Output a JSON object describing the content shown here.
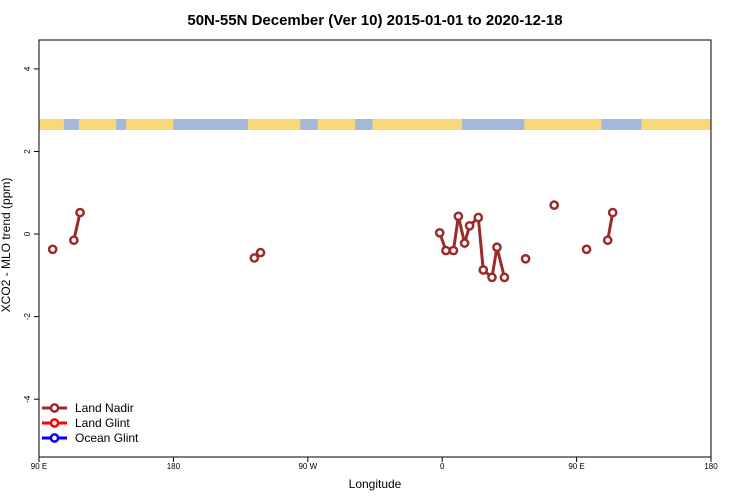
{
  "chart_data": {
    "type": "line",
    "title": "50N-55N December (Ver 10)   2015-01-01 to 2020-12-18",
    "xlabel": "Longitude",
    "ylabel": "XCO2 - MLO trend (ppm)",
    "xlim": [
      -90,
      180
    ],
    "ylim": [
      -5.4,
      4.7
    ],
    "x_ticks": [
      {
        "value": -90,
        "label": "90 E"
      },
      {
        "value": -36,
        "label": "180"
      },
      {
        "value": 18,
        "label": "90 W"
      },
      {
        "value": 72,
        "label": "0"
      },
      {
        "value": 126,
        "label": "90 E"
      },
      {
        "value": 180,
        "label": "180"
      }
    ],
    "y_ticks": [
      -4,
      -2,
      0,
      2,
      4
    ],
    "land_ocean_strip": {
      "land_color": "#F9D877",
      "ocean_color": "#A4B8DC",
      "land_ranges": [
        [
          -90,
          -80
        ],
        [
          -74,
          -59
        ],
        [
          -55,
          -36
        ],
        [
          -6,
          15
        ],
        [
          22,
          37
        ],
        [
          44,
          80
        ],
        [
          105,
          136
        ],
        [
          152,
          180
        ]
      ]
    },
    "series": [
      {
        "name": "Land Nadir",
        "color": "#9B2B2B",
        "segments": [
          [
            {
              "x": -84.5,
              "y": -0.37
            }
          ],
          [
            {
              "x": -76.0,
              "y": -0.15
            },
            {
              "x": -73.5,
              "y": 0.52
            }
          ],
          [
            {
              "x": -3.5,
              "y": -0.58
            },
            {
              "x": -1.0,
              "y": -0.45
            }
          ],
          [
            {
              "x": 71.0,
              "y": 0.03
            },
            {
              "x": 73.5,
              "y": -0.4
            },
            {
              "x": 76.5,
              "y": -0.4
            },
            {
              "x": 78.5,
              "y": 0.43
            },
            {
              "x": 81.0,
              "y": -0.22
            },
            {
              "x": 83.0,
              "y": 0.2
            },
            {
              "x": 86.5,
              "y": 0.4
            },
            {
              "x": 88.5,
              "y": -0.87
            },
            {
              "x": 92.0,
              "y": -1.05
            },
            {
              "x": 94.0,
              "y": -0.32
            },
            {
              "x": 97.0,
              "y": -1.05
            }
          ],
          [
            {
              "x": 105.5,
              "y": -0.6
            }
          ],
          [
            {
              "x": 117.0,
              "y": 0.7
            }
          ],
          [
            {
              "x": 130.0,
              "y": -0.37
            }
          ],
          [
            {
              "x": 138.5,
              "y": -0.15
            },
            {
              "x": 140.5,
              "y": 0.52
            }
          ]
        ]
      },
      {
        "name": "Land Glint",
        "color": "#FF0000",
        "segments": []
      },
      {
        "name": "Ocean Glint",
        "color": "#0000FF",
        "segments": []
      }
    ],
    "legend_position": "bottom-left"
  }
}
